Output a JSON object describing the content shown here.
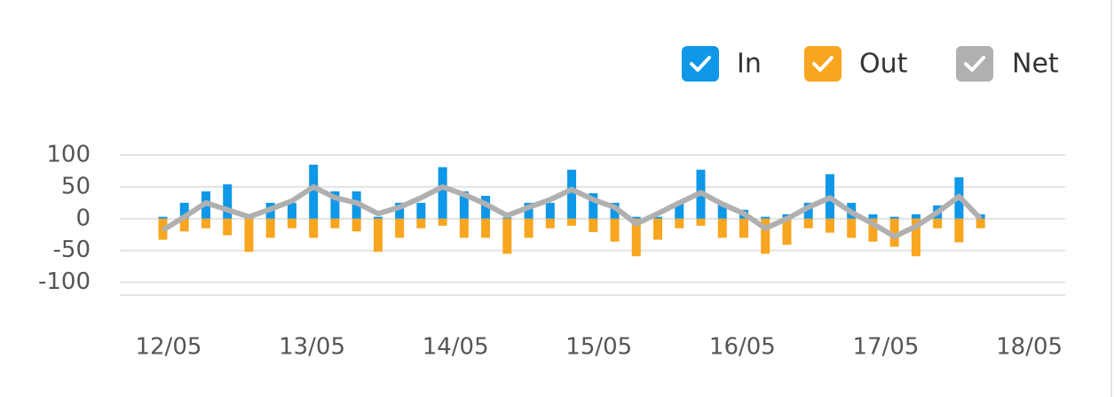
{
  "chart_data": {
    "type": "bar",
    "x": [
      -0.04,
      0.11,
      0.26,
      0.41,
      0.56,
      0.71,
      0.86,
      1.01,
      1.16,
      1.31,
      1.46,
      1.61,
      1.76,
      1.91,
      2.06,
      2.21,
      2.36,
      2.51,
      2.66,
      2.81,
      2.96,
      3.11,
      3.26,
      3.41,
      3.56,
      3.71,
      3.86,
      4.01,
      4.16,
      4.31,
      4.46,
      4.61,
      4.76,
      4.91,
      5.06,
      5.21,
      5.36,
      5.51,
      5.66
    ],
    "series": [
      {
        "name": "In",
        "type": "bar",
        "color": "#0f97e8",
        "values": [
          3,
          25,
          43,
          54,
          2,
          25,
          25,
          85,
          43,
          43,
          3,
          25,
          25,
          81,
          43,
          36,
          2,
          25,
          25,
          77,
          40,
          25,
          3,
          3,
          25,
          77,
          25,
          14,
          3,
          7,
          25,
          70,
          25,
          7,
          3,
          7,
          21,
          65,
          7
        ]
      },
      {
        "name": "Out",
        "type": "bar",
        "color": "#f8a51f",
        "values": [
          -33,
          -20,
          -15,
          -26,
          -52,
          -30,
          -15,
          -30,
          -15,
          -20,
          -52,
          -30,
          -15,
          -11,
          -30,
          -30,
          -55,
          -30,
          -15,
          -11,
          -21,
          -36,
          -59,
          -33,
          -15,
          -11,
          -30,
          -30,
          -55,
          -41,
          -15,
          -22,
          -30,
          -36,
          -44,
          -59,
          -15,
          -37,
          -15
        ]
      },
      {
        "name": "Net",
        "type": "line",
        "color": "#b0b0b0",
        "values": [
          -18,
          3,
          25,
          14,
          3,
          15,
          28,
          50,
          33,
          25,
          8,
          18,
          33,
          50,
          38,
          23,
          5,
          18,
          30,
          46,
          30,
          18,
          -8,
          8,
          25,
          41,
          23,
          8,
          -15,
          0,
          18,
          33,
          10,
          -8,
          -28,
          -12,
          10,
          35,
          0
        ]
      }
    ],
    "xlim": [
      -0.34,
      6.25
    ],
    "xticks": [
      {
        "value": 0,
        "label": "12/05"
      },
      {
        "value": 1,
        "label": "13/05"
      },
      {
        "value": 2,
        "label": "14/05"
      },
      {
        "value": 3,
        "label": "15/05"
      },
      {
        "value": 4,
        "label": "16/05"
      },
      {
        "value": 5,
        "label": "17/05"
      },
      {
        "value": 6,
        "label": "18/05"
      }
    ],
    "ylim": [
      -120,
      100
    ],
    "yticks": [
      100,
      50,
      0,
      -50,
      -100
    ],
    "grid": true,
    "legend": "top-right"
  }
}
